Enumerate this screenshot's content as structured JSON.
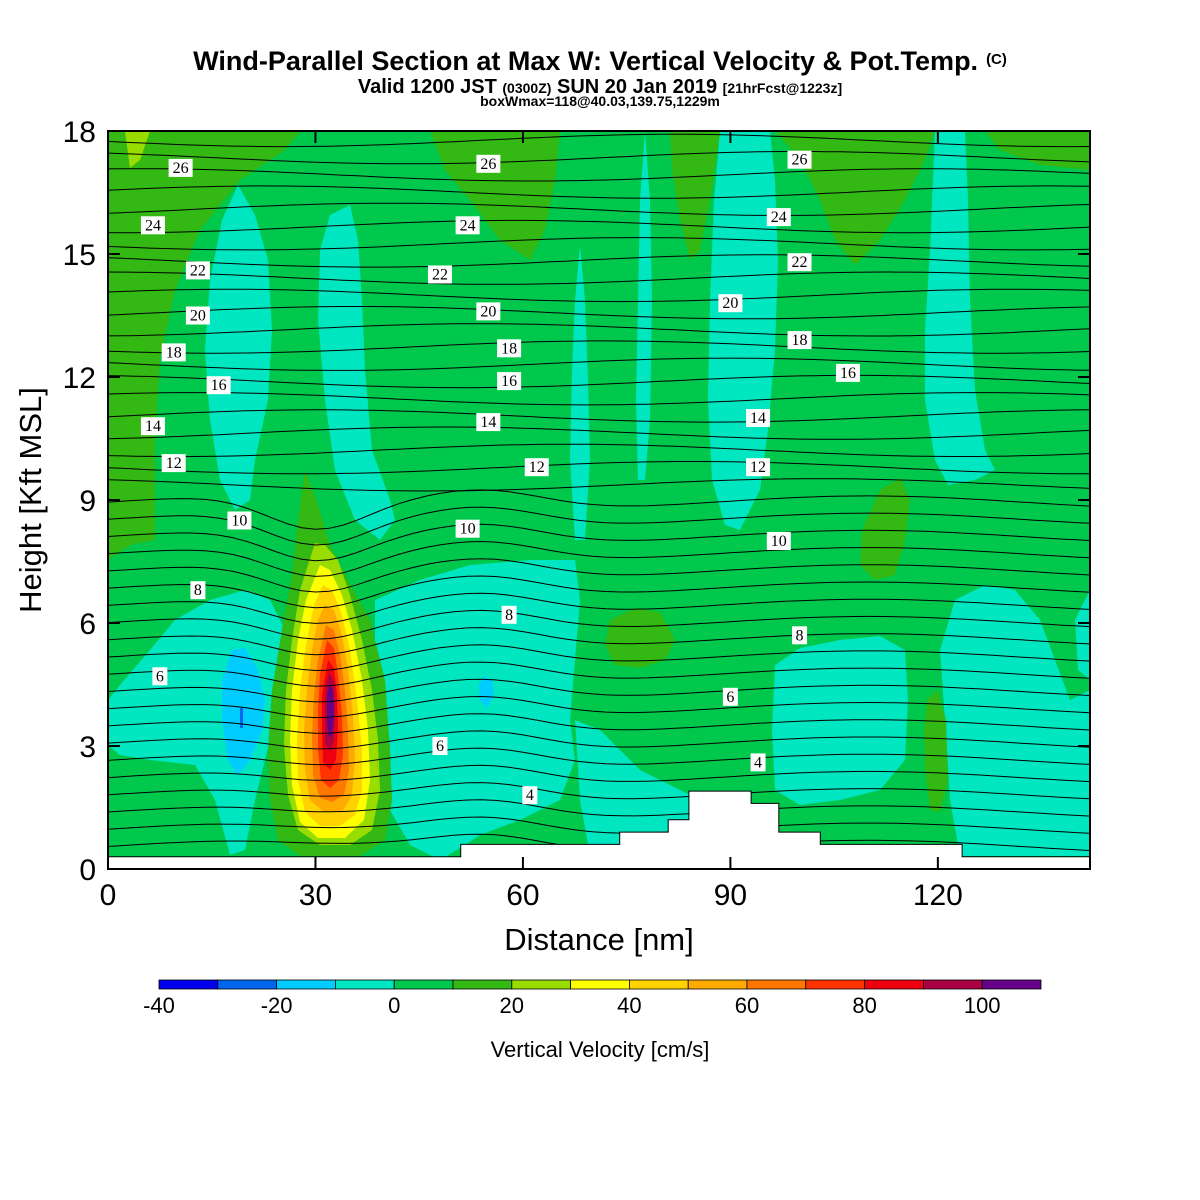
{
  "title": "Wind-Parallel Section at Max W: Vertical Velocity & Pot.Temp.",
  "title_mark": "(C)",
  "subtitle_valid": "Valid 1200 JST",
  "subtitle_utc": "(0300Z)",
  "subtitle_date": "SUN 20 Jan 2019",
  "subtitle_fcst": "[21hrFcst@1223z]",
  "subtitle2": "boxWmax=118@40.03,139.75,1229m",
  "chart_data": {
    "type": "heatmap",
    "xlabel": "Distance [nm]",
    "ylabel": "Height [Kft MSL]",
    "xlim": [
      0,
      142
    ],
    "ylim": [
      0,
      18
    ],
    "x_ticks": [
      "0",
      "30",
      "60",
      "90",
      "120"
    ],
    "y_ticks": [
      "0",
      "3",
      "6",
      "9",
      "12",
      "15",
      "18"
    ],
    "fill_variable": "Vertical Velocity [cm/s]",
    "contour_variable": "Potential temperature",
    "colorbar": {
      "label": "Vertical Velocity [cm/s]",
      "bounds": [
        -40,
        -30,
        -20,
        -10,
        0,
        10,
        20,
        30,
        40,
        50,
        60,
        70,
        80,
        90,
        100,
        110
      ],
      "tick_labels": [
        "-40",
        "-20",
        "0",
        "20",
        "40",
        "60",
        "80",
        "100"
      ],
      "colors": [
        "#0000ee",
        "#0066ee",
        "#00ccff",
        "#00e6c0",
        "#00c84c",
        "#33b814",
        "#99dd00",
        "#ffff00",
        "#ffd200",
        "#ffaa00",
        "#ff7700",
        "#ff3300",
        "#ee0011",
        "#aa0044",
        "#660088"
      ]
    },
    "max_updraft": {
      "x": 32,
      "y": 4.0,
      "w": 118
    },
    "terrain_heights": [
      {
        "x": 0,
        "h": 0.3
      },
      {
        "x": 50.5,
        "h": 0.3
      },
      {
        "x": 51,
        "h": 0.6
      },
      {
        "x": 74,
        "h": 0.9
      },
      {
        "x": 81,
        "h": 1.2
      },
      {
        "x": 84,
        "h": 1.9
      },
      {
        "x": 90,
        "h": 1.9
      },
      {
        "x": 93,
        "h": 1.6
      },
      {
        "x": 97,
        "h": 0.9
      },
      {
        "x": 103,
        "h": 0.6
      },
      {
        "x": 123,
        "h": 0.6
      },
      {
        "x": 123.5,
        "h": 0.3
      },
      {
        "x": 142,
        "h": 0.3
      }
    ],
    "isentrope_labels": [
      {
        "text": "26",
        "x": 10.5,
        "y": 17.1
      },
      {
        "text": "24",
        "x": 6.5,
        "y": 15.7
      },
      {
        "text": "22",
        "x": 13,
        "y": 14.6
      },
      {
        "text": "20",
        "x": 13,
        "y": 13.5
      },
      {
        "text": "18",
        "x": 9.5,
        "y": 12.6
      },
      {
        "text": "16",
        "x": 16,
        "y": 11.8
      },
      {
        "text": "14",
        "x": 6.5,
        "y": 10.8
      },
      {
        "text": "12",
        "x": 9.5,
        "y": 9.9
      },
      {
        "text": "10",
        "x": 19,
        "y": 8.5
      },
      {
        "text": "8",
        "x": 13,
        "y": 6.8
      },
      {
        "text": "6",
        "x": 7.5,
        "y": 4.7
      },
      {
        "text": "26",
        "x": 55,
        "y": 17.2
      },
      {
        "text": "24",
        "x": 52,
        "y": 15.7
      },
      {
        "text": "22",
        "x": 48,
        "y": 14.5
      },
      {
        "text": "20",
        "x": 55,
        "y": 13.6
      },
      {
        "text": "18",
        "x": 58,
        "y": 12.7
      },
      {
        "text": "16",
        "x": 58,
        "y": 11.9
      },
      {
        "text": "14",
        "x": 55,
        "y": 10.9
      },
      {
        "text": "12",
        "x": 62,
        "y": 9.8
      },
      {
        "text": "10",
        "x": 52,
        "y": 8.3
      },
      {
        "text": "8",
        "x": 58,
        "y": 6.2
      },
      {
        "text": "6",
        "x": 48,
        "y": 3.0
      },
      {
        "text": "4",
        "x": 61,
        "y": 1.8
      },
      {
        "text": "26",
        "x": 100,
        "y": 17.3
      },
      {
        "text": "24",
        "x": 97,
        "y": 15.9
      },
      {
        "text": "22",
        "x": 100,
        "y": 14.8
      },
      {
        "text": "20",
        "x": 90,
        "y": 13.8
      },
      {
        "text": "18",
        "x": 100,
        "y": 12.9
      },
      {
        "text": "16",
        "x": 107,
        "y": 12.1
      },
      {
        "text": "14",
        "x": 94,
        "y": 11.0
      },
      {
        "text": "12",
        "x": 94,
        "y": 9.8
      },
      {
        "text": "10",
        "x": 97,
        "y": 8.0
      },
      {
        "text": "8",
        "x": 100,
        "y": 5.7
      },
      {
        "text": "6",
        "x": 90,
        "y": 4.2
      },
      {
        "text": "4",
        "x": 94,
        "y": 2.6
      }
    ]
  }
}
